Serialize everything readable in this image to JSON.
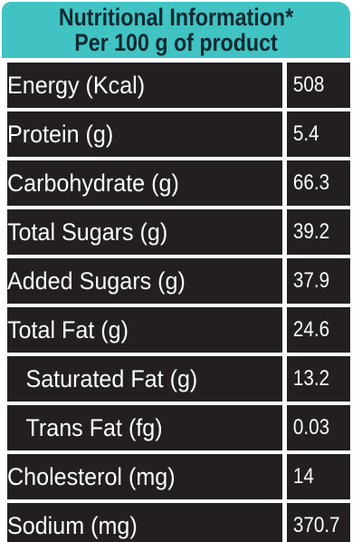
{
  "header": {
    "line1": "Nutritional  Information*",
    "line2": "Per 100 g of product"
  },
  "rows": [
    {
      "label": "Energy (Kcal)",
      "value": "508"
    },
    {
      "label": "Protein (g)",
      "value": "5.4"
    },
    {
      "label": "Carbohydrate (g)",
      "value": "66.3"
    },
    {
      "label": "Total Sugars (g)",
      "value": "39.2"
    },
    {
      "label": "Added Sugars (g)",
      "value": "37.9"
    },
    {
      "label": "Total Fat (g)",
      "value": "24.6"
    },
    {
      "label": "Saturated Fat (g)",
      "value": "13.2"
    },
    {
      "label": "Trans Fat (fg)",
      "value": "0.03"
    },
    {
      "label": "Cholesterol (mg)",
      "value": "14"
    },
    {
      "label": "Sodium (mg)",
      "value": "370.7"
    }
  ],
  "colors": {
    "header_bg": "#41c3c4",
    "header_text": "#0e2a2f",
    "cell_bg": "#231f20",
    "cell_text": "#ffffff",
    "grid_lines": "#ffffff"
  }
}
